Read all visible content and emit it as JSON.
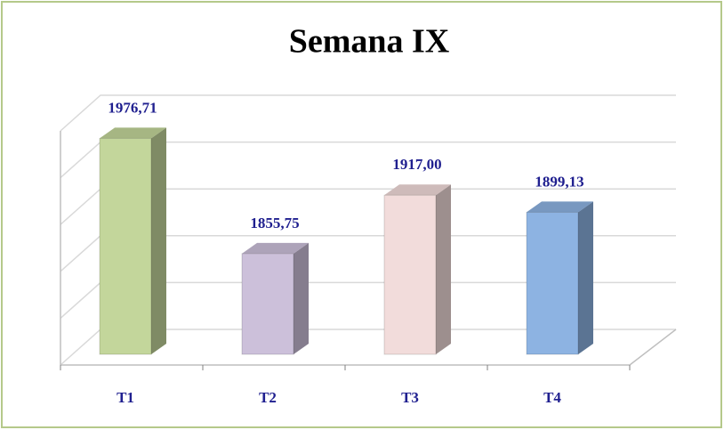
{
  "chart_data": {
    "type": "bar3d",
    "title": "Semana IX",
    "categories": [
      "T1",
      "T2",
      "T3",
      "T4"
    ],
    "values": [
      1976.71,
      1855.75,
      1917.0,
      1899.13
    ],
    "value_labels": [
      "1976,71",
      "1855,75",
      "1917,00",
      "1899,13"
    ],
    "colors": [
      "#c3d69b",
      "#ccc0da",
      "#f2dcdb",
      "#8db3e2"
    ],
    "ylim": [
      1750,
      2000
    ],
    "yticks": [
      1750,
      1800,
      1850,
      1900,
      1950,
      2000
    ],
    "grid": true
  }
}
